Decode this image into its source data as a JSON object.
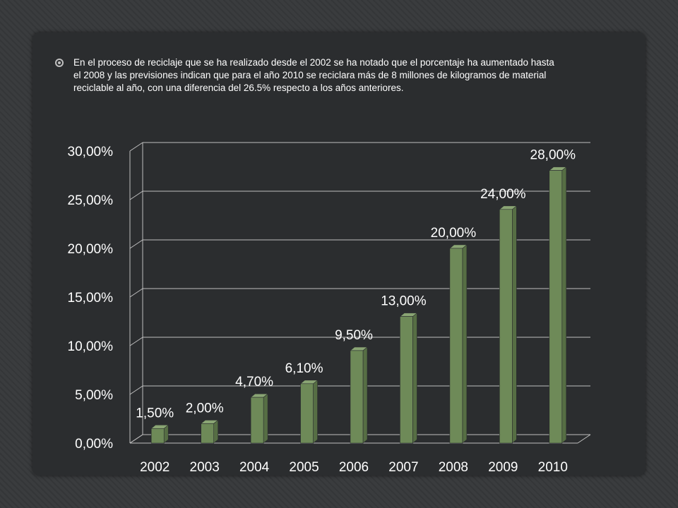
{
  "slide": {
    "bullet_text": "En el proceso de reciclaje que se ha realizado desde el 2002 se ha notado que el porcentaje ha aumentado hasta el 2008 y las previsiones indican que para el año 2010 se reciclara  más de 8 millones de kilogramos de material reciclable al año, con una diferencia del 26.5% respecto a los años anteriores.",
    "bullet_icon": "circle-bullet-icon"
  },
  "chart_data": {
    "type": "bar",
    "categories": [
      "2002",
      "2003",
      "2004",
      "2005",
      "2006",
      "2007",
      "2008",
      "2009",
      "2010"
    ],
    "values": [
      1.5,
      2.0,
      4.7,
      6.1,
      9.5,
      13.0,
      20.0,
      24.0,
      28.0
    ],
    "value_labels": [
      "1,50%",
      "2,00%",
      "4,70%",
      "6,10%",
      "9,50%",
      "13,00%",
      "20,00%",
      "24,00%",
      "28,00%"
    ],
    "y_ticks": [
      0,
      5,
      10,
      15,
      20,
      25,
      30
    ],
    "y_tick_labels": [
      "0,00%",
      "5,00%",
      "10,00%",
      "15,00%",
      "20,00%",
      "25,00%",
      "30,00%"
    ],
    "ylim": [
      0,
      30
    ],
    "grid": true,
    "legend": "none",
    "colors": {
      "bar_front": "#6e8a58",
      "bar_side": "#566e44",
      "bar_top": "#8aa574",
      "gridline": "#bfbfbf"
    }
  }
}
